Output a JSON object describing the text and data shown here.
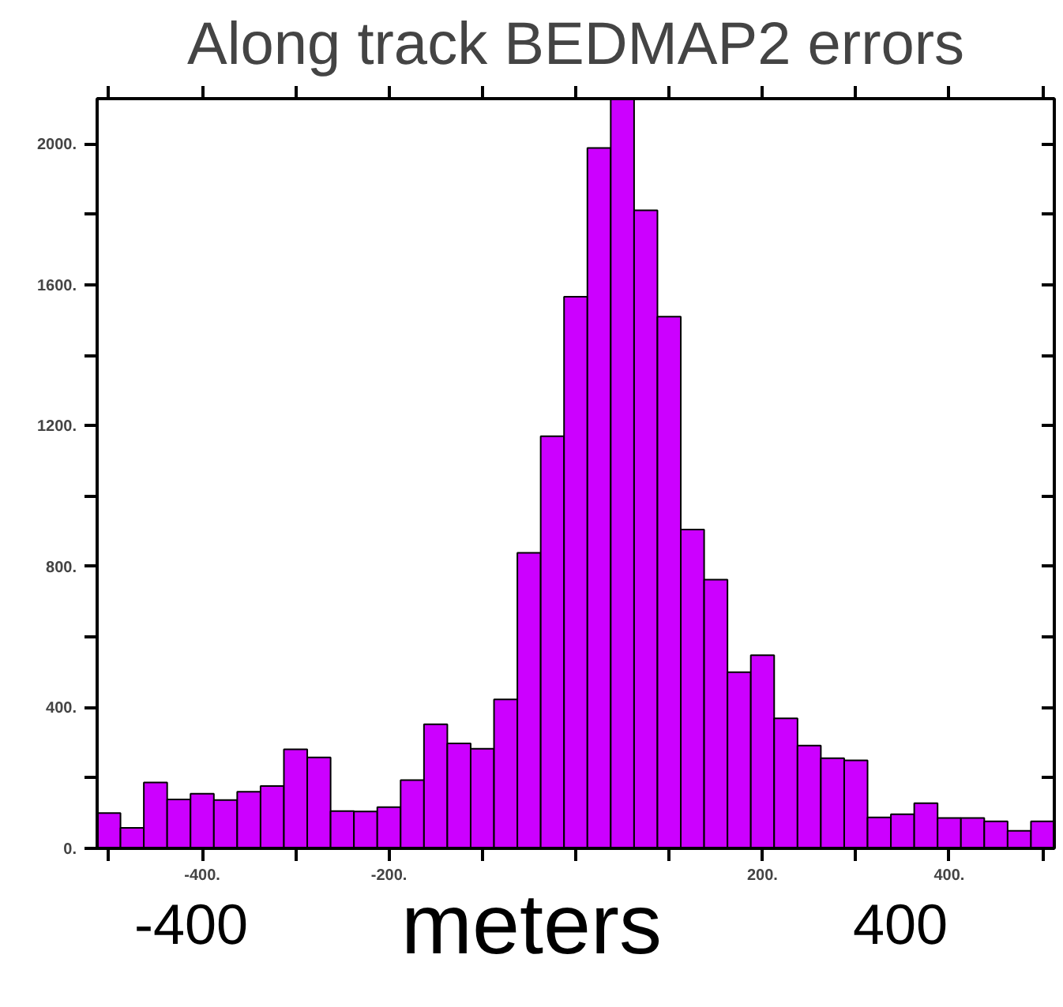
{
  "chart_data": {
    "type": "histogram",
    "title": "Along track BEDMAP2 errors",
    "xlabel": "meters",
    "annotations": [
      "-400",
      "400"
    ],
    "bins": [
      -512.5,
      -487.5,
      -462.5,
      -437.5,
      -412.5,
      -387.5,
      -362.5,
      -337.5,
      -312.5,
      -287.5,
      -262.5,
      -237.5,
      -212.5,
      -187.5,
      -162.5,
      -137.5,
      -112.5,
      -87.5,
      -62.5,
      -37.5,
      -12.5,
      12.5,
      37.5,
      62.5,
      87.5,
      112.5,
      137.5,
      162.5,
      187.5,
      212.5,
      237.5,
      262.5,
      287.5,
      312.5,
      337.5,
      362.5,
      387.5,
      412.5,
      437.5,
      462.5,
      487.5,
      512.5
    ],
    "values": [
      100,
      58,
      187,
      139,
      155,
      137,
      161,
      177,
      281,
      258,
      106,
      105,
      117,
      194,
      352,
      298,
      283,
      423,
      839,
      1170,
      1566,
      1988,
      2128,
      1811,
      1509,
      905,
      763,
      500,
      548,
      369,
      292,
      256,
      250,
      88,
      97,
      128,
      86,
      86,
      77,
      50,
      77
    ],
    "color": "#cc00ff",
    "xlim": [
      -512.5,
      512.5
    ],
    "ylim": [
      0,
      2128
    ],
    "xticks": [
      {
        "value": -500,
        "label": null
      },
      {
        "value": -400,
        "label": "-400."
      },
      {
        "value": -300,
        "label": null
      },
      {
        "value": -200,
        "label": "-200."
      },
      {
        "value": -100,
        "label": null
      },
      {
        "value": 0,
        "label": null
      },
      {
        "value": 100,
        "label": null
      },
      {
        "value": 200,
        "label": "200."
      },
      {
        "value": 300,
        "label": null
      },
      {
        "value": 400,
        "label": "400."
      },
      {
        "value": 500,
        "label": null
      }
    ],
    "yticks": [
      {
        "value": 0,
        "label": "0."
      },
      {
        "value": 200,
        "label": null
      },
      {
        "value": 400,
        "label": "400."
      },
      {
        "value": 600,
        "label": null
      },
      {
        "value": 800,
        "label": "800."
      },
      {
        "value": 1000,
        "label": null
      },
      {
        "value": 1200,
        "label": "1200."
      },
      {
        "value": 1400,
        "label": null
      },
      {
        "value": 1600,
        "label": "1600."
      },
      {
        "value": 1800,
        "label": null
      },
      {
        "value": 2000,
        "label": "2000."
      }
    ],
    "grid": false
  }
}
